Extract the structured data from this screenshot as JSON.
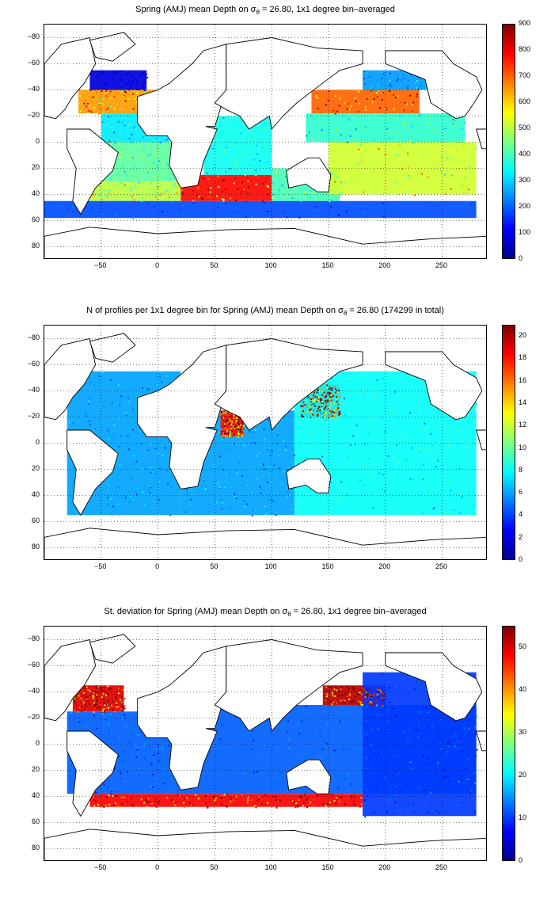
{
  "panels": [
    {
      "title_pre": "Spring (AMJ) mean Depth on ",
      "title_post": " = 26.80, 1x1 degree bin–averaged",
      "colorbar_ticks": [
        "0",
        "100",
        "200",
        "300",
        "400",
        "500",
        "600",
        "700",
        "800",
        "900"
      ]
    },
    {
      "title_pre": "N of profiles per 1x1 degree bin for Spring (AMJ) mean Depth on ",
      "title_post": " = 26.80 (174299 in total)",
      "colorbar_ticks": [
        "0",
        "2",
        "4",
        "6",
        "8",
        "10",
        "12",
        "14",
        "16",
        "18",
        "20"
      ]
    },
    {
      "title_pre": "St. deviation for Spring (AMJ) mean Depth on ",
      "title_post": " = 26.80, 1x1 degree bin–averaged",
      "colorbar_ticks": [
        "0",
        "10",
        "20",
        "30",
        "40",
        "50"
      ]
    }
  ],
  "sigma_symbol": "σ",
  "sigma_sub": "θ",
  "ytick_labels": [
    "80",
    "60",
    "40",
    "20",
    "0",
    "−20",
    "−40",
    "−60",
    "−80"
  ],
  "xtick_labels": [
    "−50",
    "0",
    "50",
    "100",
    "150",
    "200",
    "250"
  ],
  "chart_data": [
    {
      "type": "heatmap",
      "title": "Spring (AMJ) mean Depth on σθ = 26.80, 1x1 degree bin–averaged",
      "xlim": [
        -100,
        290
      ],
      "ylim": [
        -90,
        90
      ],
      "xticks": [
        -50,
        0,
        50,
        100,
        150,
        200,
        250
      ],
      "yticks": [
        -80,
        -60,
        -40,
        -20,
        0,
        20,
        40,
        60,
        80
      ],
      "clim": [
        0,
        900
      ],
      "colormap": "jet",
      "grid": "dotted",
      "colorbar": "right",
      "regions": [
        {
          "lon": [
            -70,
            0
          ],
          "lat": [
            22,
            40
          ],
          "value": 650
        },
        {
          "lon": [
            -60,
            -10
          ],
          "lat": [
            40,
            55
          ],
          "value": 80
        },
        {
          "lon": [
            -50,
            10
          ],
          "lat": [
            0,
            22
          ],
          "value": 320
        },
        {
          "lon": [
            -50,
            20
          ],
          "lat": [
            -30,
            0
          ],
          "value": 420
        },
        {
          "lon": [
            -60,
            20
          ],
          "lat": [
            -45,
            -30
          ],
          "value": 500
        },
        {
          "lon": [
            20,
            100
          ],
          "lat": [
            -45,
            -25
          ],
          "value": 780
        },
        {
          "lon": [
            40,
            100
          ],
          "lat": [
            -25,
            20
          ],
          "value": 350
        },
        {
          "lon": [
            100,
            160
          ],
          "lat": [
            -45,
            -20
          ],
          "value": 400
        },
        {
          "lon": [
            135,
            230
          ],
          "lat": [
            22,
            40
          ],
          "value": 700
        },
        {
          "lon": [
            180,
            260
          ],
          "lat": [
            40,
            55
          ],
          "value": 250
        },
        {
          "lon": [
            130,
            270
          ],
          "lat": [
            0,
            22
          ],
          "value": 380
        },
        {
          "lon": [
            150,
            280
          ],
          "lat": [
            -40,
            0
          ],
          "value": 520
        },
        {
          "lon": [
            -100,
            280
          ],
          "lat": [
            -58,
            -45
          ],
          "value": 180
        }
      ]
    },
    {
      "type": "heatmap",
      "title": "N of profiles per 1x1 degree bin for Spring (AMJ) mean Depth on σθ = 26.80 (174299 in total)",
      "xlim": [
        -100,
        290
      ],
      "ylim": [
        -90,
        90
      ],
      "xticks": [
        -50,
        0,
        50,
        100,
        150,
        200,
        250
      ],
      "yticks": [
        -80,
        -60,
        -40,
        -20,
        0,
        20,
        40,
        60,
        80
      ],
      "clim": [
        0,
        21
      ],
      "colormap": "jet",
      "grid": "dotted",
      "colorbar": "right",
      "total_profiles": 174299,
      "regions": [
        {
          "lon": [
            -80,
            20
          ],
          "lat": [
            -55,
            55
          ],
          "value": 6
        },
        {
          "lon": [
            20,
            120
          ],
          "lat": [
            -55,
            25
          ],
          "value": 6
        },
        {
          "lon": [
            55,
            75
          ],
          "lat": [
            5,
            25
          ],
          "value": 18
        },
        {
          "lon": [
            125,
            160
          ],
          "lat": [
            20,
            45
          ],
          "value": 19
        },
        {
          "lon": [
            120,
            280
          ],
          "lat": [
            -55,
            55
          ],
          "value": 8
        }
      ]
    },
    {
      "type": "heatmap",
      "title": "St. deviation for Spring (AMJ) mean Depth on σθ = 26.80, 1x1 degree bin–averaged",
      "xlim": [
        -100,
        290
      ],
      "ylim": [
        -90,
        90
      ],
      "xticks": [
        -50,
        0,
        50,
        100,
        150,
        200,
        250
      ],
      "yticks": [
        -80,
        -60,
        -40,
        -20,
        0,
        20,
        40,
        60,
        80
      ],
      "clim": [
        0,
        55
      ],
      "colormap": "jet",
      "grid": "dotted",
      "colorbar": "right",
      "regions": [
        {
          "lon": [
            -75,
            -30
          ],
          "lat": [
            25,
            45
          ],
          "value": 50
        },
        {
          "lon": [
            145,
            200
          ],
          "lat": [
            30,
            45
          ],
          "value": 52
        },
        {
          "lon": [
            -60,
            180
          ],
          "lat": [
            -48,
            -38
          ],
          "value": 48
        },
        {
          "lon": [
            -80,
            20
          ],
          "lat": [
            -38,
            25
          ],
          "value": 12
        },
        {
          "lon": [
            20,
            280
          ],
          "lat": [
            -38,
            30
          ],
          "value": 12
        },
        {
          "lon": [
            180,
            280
          ],
          "lat": [
            -55,
            55
          ],
          "value": 10
        }
      ]
    }
  ]
}
